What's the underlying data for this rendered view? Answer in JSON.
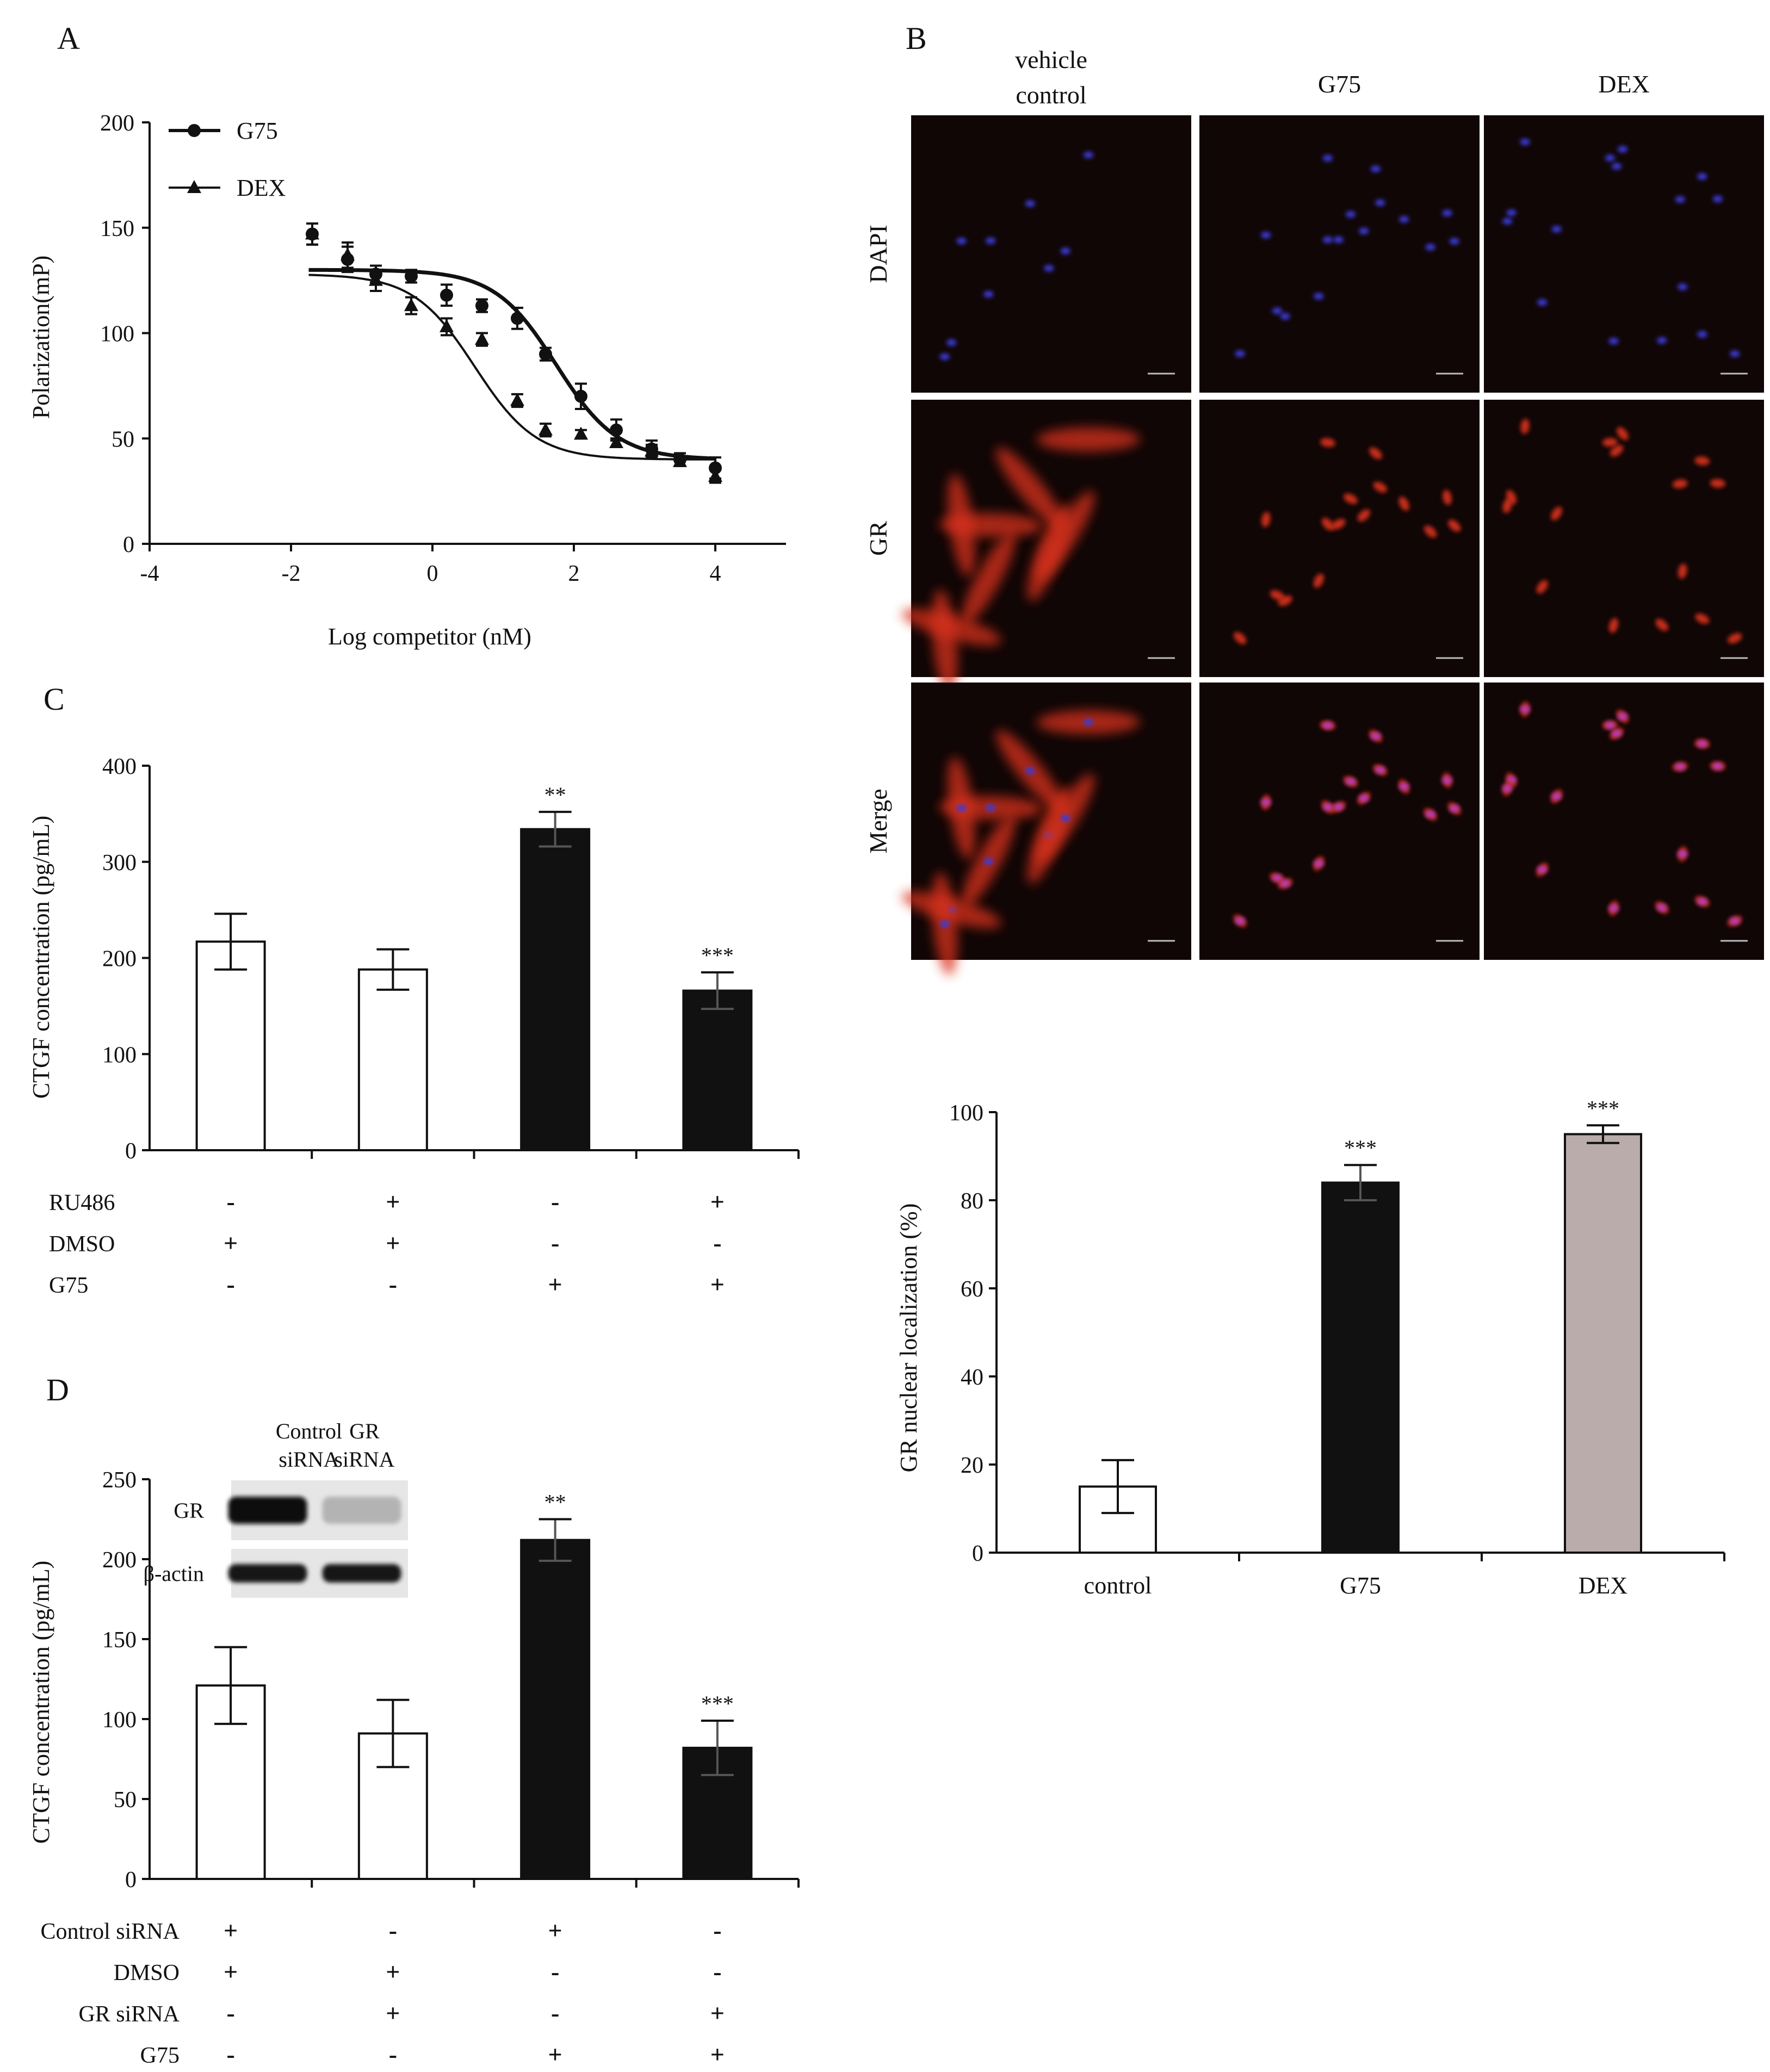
{
  "panels": [
    {
      "id": "A",
      "label": "A"
    },
    {
      "id": "B",
      "label": "B"
    },
    {
      "id": "C",
      "label": "C"
    },
    {
      "id": "D",
      "label": "D"
    }
  ],
  "chart_data": [
    {
      "id": "panel-a",
      "type": "scatter",
      "xlabel": "Log competitor (nM)",
      "ylabel": "Polarization(mP)",
      "xlim": [
        -4,
        5
      ],
      "ylim": [
        0,
        200
      ],
      "xticks": [
        -4,
        -2,
        0,
        2,
        4
      ],
      "yticks": [
        0,
        50,
        100,
        150,
        200
      ],
      "legend_position": "top-left",
      "grid": false,
      "series": [
        {
          "name": "G75",
          "marker": "circle",
          "x": [
            -1.7,
            -1.2,
            -0.8,
            -0.3,
            0.2,
            0.7,
            1.2,
            1.6,
            2.1,
            2.6,
            3.1,
            3.5,
            4.0
          ],
          "y": [
            147,
            135,
            128,
            127,
            118,
            113,
            107,
            90,
            70,
            54,
            45,
            40,
            36
          ],
          "err": [
            5,
            6,
            4,
            3,
            5,
            3,
            5,
            3,
            6,
            5,
            4,
            3,
            5
          ],
          "fit": {
            "top": 130,
            "bottom": 40,
            "logEC50": 1.75,
            "hill": 1.0
          }
        },
        {
          "name": "DEX",
          "marker": "triangle",
          "x": [
            -1.7,
            -1.2,
            -0.8,
            -0.3,
            0.2,
            0.7,
            1.2,
            1.6,
            2.1,
            2.6,
            3.1,
            3.5,
            4.0
          ],
          "y": [
            147,
            137,
            125,
            113,
            103,
            97,
            68,
            54,
            52,
            48,
            44,
            39,
            32
          ],
          "err": [
            5,
            6,
            5,
            4,
            4,
            3,
            3,
            3,
            2,
            2,
            3,
            2,
            3
          ],
          "fit": {
            "top": 128,
            "bottom": 40,
            "logEC50": 0.6,
            "hill": 1.0
          }
        }
      ]
    },
    {
      "id": "panel-b-bar",
      "type": "bar",
      "ylabel": "GR nuclear localization (%)",
      "categories": [
        "control",
        "G75",
        "DEX"
      ],
      "values": [
        15,
        84,
        95
      ],
      "errors": [
        6,
        4,
        2
      ],
      "significance": [
        "",
        "***",
        "***"
      ],
      "ylim": [
        0,
        100
      ],
      "yticks": [
        0,
        20,
        40,
        60,
        80,
        100
      ],
      "fills": [
        "#ffffff",
        "#111111",
        "#b9acab"
      ]
    },
    {
      "id": "panel-c",
      "type": "bar",
      "ylabel": "CTGF concentration (pg/mL)",
      "categories": [
        "1",
        "2",
        "3",
        "4"
      ],
      "values": [
        217,
        188,
        334,
        166
      ],
      "errors": [
        29,
        21,
        18,
        19
      ],
      "significance": [
        "",
        "",
        "**",
        "***"
      ],
      "ylim": [
        0,
        400
      ],
      "yticks": [
        0,
        100,
        200,
        300,
        400
      ],
      "fills": [
        "#ffffff",
        "#ffffff",
        "#111111",
        "#111111"
      ],
      "conditions": [
        {
          "label": "RU486",
          "signs": [
            "-",
            "+",
            "-",
            "+"
          ]
        },
        {
          "label": "DMSO",
          "signs": [
            "+",
            "+",
            "-",
            "-"
          ]
        },
        {
          "label": "G75",
          "signs": [
            "-",
            "-",
            "+",
            "+"
          ]
        }
      ]
    },
    {
      "id": "panel-d",
      "type": "bar",
      "ylabel": "CTGF concentration (pg/mL)",
      "categories": [
        "1",
        "2",
        "3",
        "4"
      ],
      "values": [
        121,
        91,
        212,
        82
      ],
      "errors": [
        24,
        21,
        13,
        17
      ],
      "significance": [
        "",
        "",
        "**",
        "***"
      ],
      "ylim": [
        0,
        250
      ],
      "yticks": [
        0,
        50,
        100,
        150,
        200,
        250
      ],
      "fills": [
        "#ffffff",
        "#ffffff",
        "#111111",
        "#111111"
      ],
      "conditions": [
        {
          "label": "Control siRNA",
          "signs": [
            "+",
            "-",
            "+",
            "-"
          ]
        },
        {
          "label": "DMSO",
          "signs": [
            "+",
            "+",
            "-",
            "-"
          ]
        },
        {
          "label": "GR siRNA",
          "signs": [
            "-",
            "+",
            "-",
            "+"
          ]
        },
        {
          "label": "G75",
          "signs": [
            "-",
            "-",
            "+",
            "+"
          ]
        }
      ]
    }
  ],
  "microscopy": {
    "columns": [
      "vehicle\ncontrol",
      "G75",
      "DEX"
    ],
    "rows": [
      "DAPI",
      "GR",
      "Merge"
    ],
    "background": "#110606",
    "nucleus_color": "#3a3ad8",
    "gr_color": "#d9321c",
    "merge_nucleus_color": "#b43cc8"
  },
  "western_blot": {
    "lanes": [
      "Control\nsiRNA",
      "GR\nsiRNA"
    ],
    "bands": [
      {
        "label": "GR",
        "intensity": [
          1.0,
          0.25
        ]
      },
      {
        "label": "β-actin",
        "intensity": [
          0.95,
          0.95
        ]
      }
    ]
  }
}
